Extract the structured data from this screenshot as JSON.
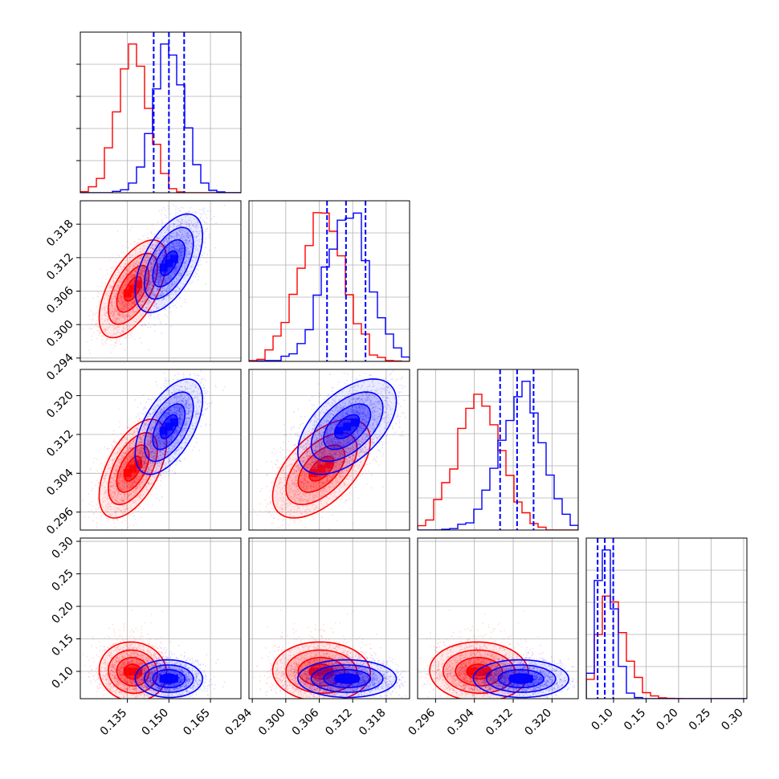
{
  "chart_data": {
    "type": "corner",
    "colors": {
      "series_a": "#ff0000",
      "series_b": "#0000ff",
      "grid": "#b0b0b0"
    },
    "parameters": [
      {
        "ticks": [
          0.135,
          0.15,
          0.165
        ],
        "tick_labels": [
          "0.135",
          "0.150",
          "0.165"
        ],
        "range": [
          0.118,
          0.176
        ]
      },
      {
        "ticks": [
          0.294,
          0.3,
          0.306,
          0.312,
          0.318
        ],
        "tick_labels": [
          "0.294",
          "0.300",
          "0.306",
          "0.312",
          "0.318"
        ],
        "range": [
          0.2934,
          0.3222
        ]
      },
      {
        "ticks": [
          0.296,
          0.304,
          0.312,
          0.32
        ],
        "tick_labels": [
          "0.296",
          "0.304",
          "0.312",
          "0.320"
        ],
        "range": [
          0.2923,
          0.3254
        ]
      },
      {
        "ticks": [
          0.1,
          0.15,
          0.2,
          0.25,
          0.3
        ],
        "tick_labels": [
          "0.10",
          "0.15",
          "0.20",
          "0.25",
          "0.30"
        ],
        "range": [
          0.058,
          0.305
        ]
      }
    ],
    "series": [
      {
        "name": "",
        "color": "#ff0000",
        "mean": [
          0.137,
          0.3065,
          0.305,
          0.098
        ],
        "std": [
          0.0055,
          0.004,
          0.0045,
          0.02
        ],
        "corr": 0.75
      },
      {
        "name": "",
        "color": "#0000ff",
        "mean": [
          0.15,
          0.311,
          0.3135,
          0.088
        ],
        "std": [
          0.0055,
          0.004,
          0.0045,
          0.013
        ],
        "corr": 0.75
      }
    ],
    "quantile_lines": {
      "color": "#0000ff",
      "values": [
        [
          0.1445,
          0.15,
          0.1555
        ],
        [
          0.3074,
          0.3108,
          0.3143
        ],
        [
          0.3093,
          0.3128,
          0.3162
        ],
        [
          0.0755,
          0.0865,
          0.0995
        ]
      ]
    },
    "grid": true
  }
}
